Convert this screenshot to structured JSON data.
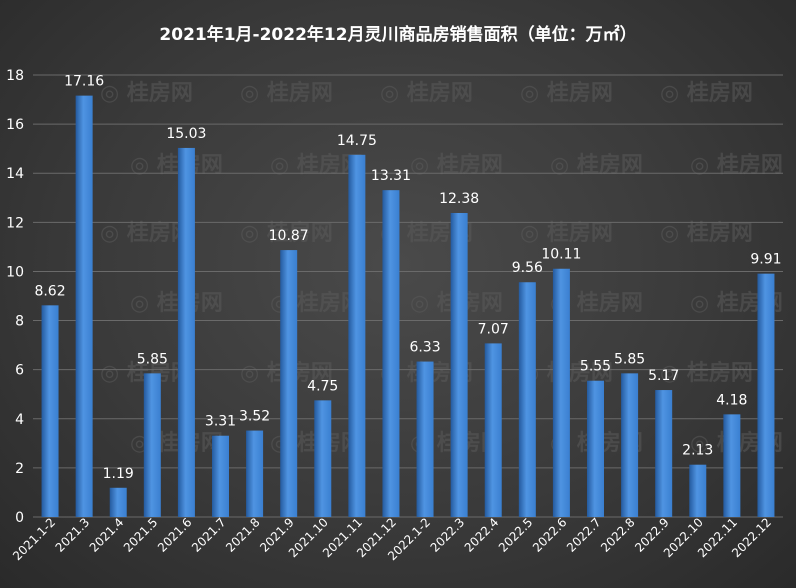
{
  "chart_data": {
    "type": "bar",
    "title": "2021年1月-2022年12月灵川商品房销售面积（单位：万㎡）",
    "categories": [
      "2021.1-2",
      "2021.3",
      "2021.4",
      "2021.5",
      "2021.6",
      "2021.7",
      "2021.8",
      "2021.9",
      "2021.10",
      "2021.11",
      "2021.12",
      "2022.1-2",
      "2022.3",
      "2022.4",
      "2022.5",
      "2022.6",
      "2022.7",
      "2022.8",
      "2022.9",
      "2022.10",
      "2022.11",
      "2022.12"
    ],
    "values": [
      8.62,
      17.16,
      1.19,
      5.85,
      15.03,
      3.31,
      3.52,
      10.87,
      4.75,
      14.75,
      13.31,
      6.33,
      12.38,
      7.07,
      9.56,
      10.11,
      5.55,
      5.85,
      5.17,
      2.13,
      4.18,
      9.91
    ],
    "value_labels": [
      "8.62",
      "17.16",
      "1.19",
      "5.85",
      "15.03",
      "3.31",
      "3.52",
      "10.87",
      "4.75",
      "14.75",
      "13.31",
      "6.33",
      "12.38",
      "7.07",
      "9.56",
      "10.11",
      "5.55",
      "5.85",
      "5.17",
      "2.13",
      "4.18",
      "9.91"
    ],
    "ylim": [
      0,
      18
    ],
    "yticks": [
      "0",
      "2",
      "4",
      "6",
      "8",
      "10",
      "12",
      "14",
      "16",
      "18"
    ],
    "xlabel": "",
    "ylabel": "",
    "grid": true,
    "legend": "none",
    "bar_color": "#3a7fd0",
    "bar_color_light": "#4f94e2",
    "bar_color_dark": "#245a9e",
    "grid_color": "#6a6a6a",
    "text_color": "#ffffff",
    "watermark": "桂房网 GUIFUN.COM"
  }
}
